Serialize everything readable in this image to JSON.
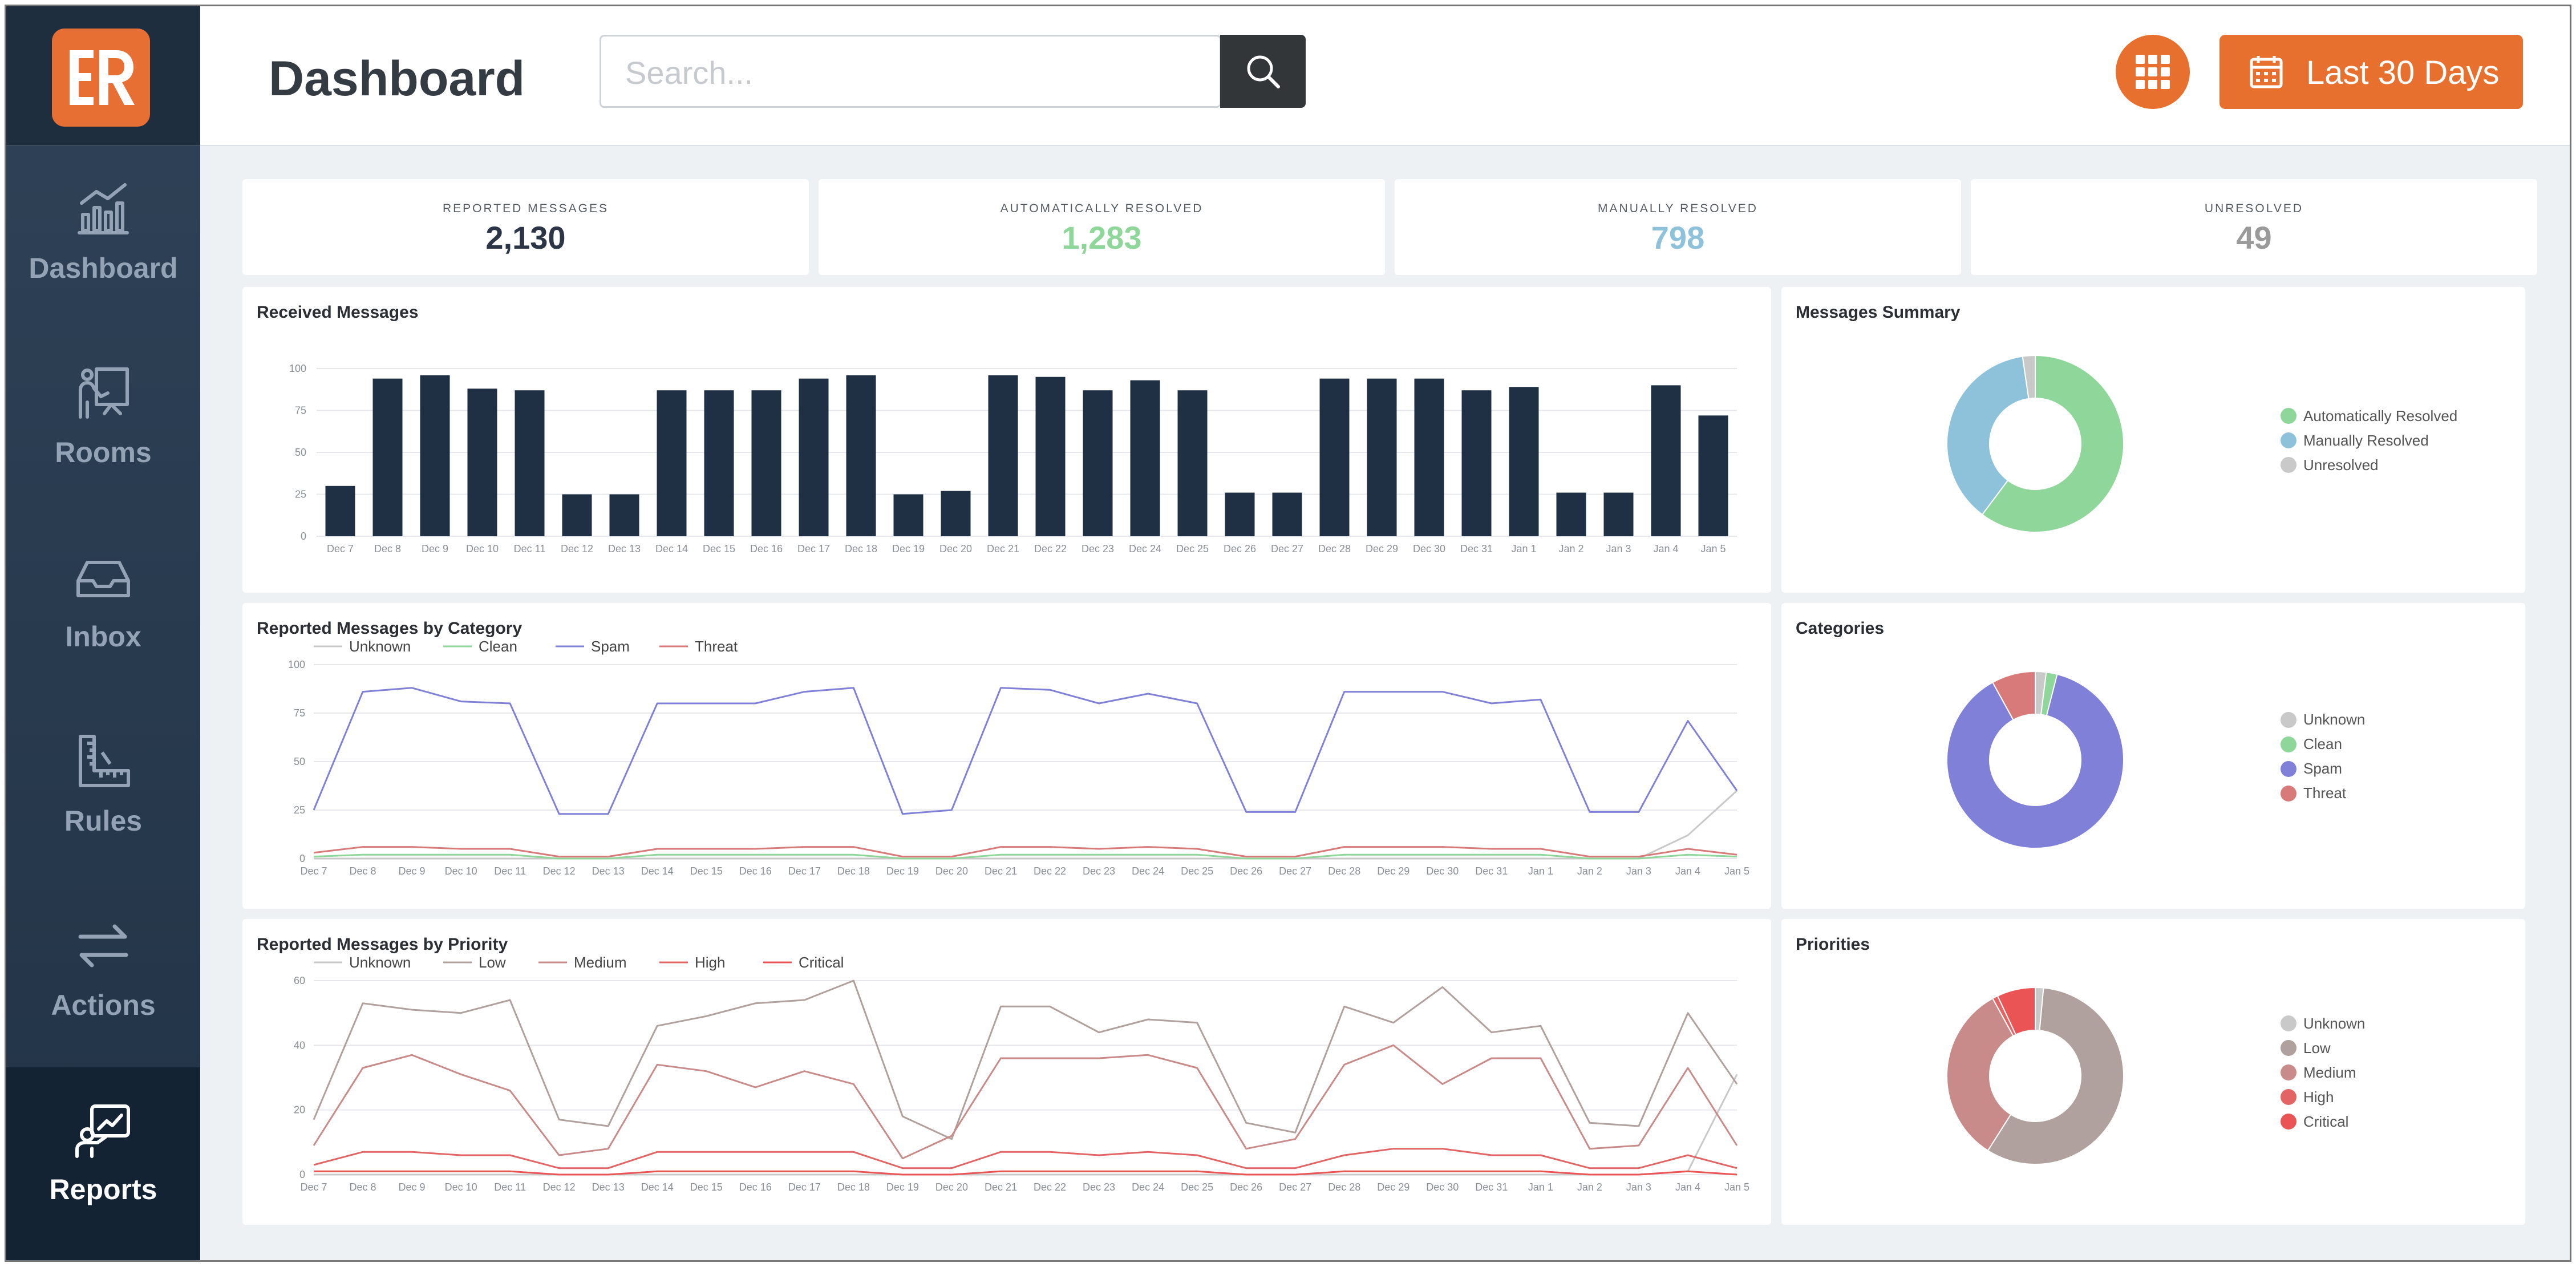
{
  "app": {
    "logo_text": "ER"
  },
  "nav": {
    "items": [
      {
        "label": "Dashboard",
        "icon": "chart-icon"
      },
      {
        "label": "Rooms",
        "icon": "rooms-icon"
      },
      {
        "label": "Inbox",
        "icon": "inbox-icon"
      },
      {
        "label": "Rules",
        "icon": "rules-icon"
      },
      {
        "label": "Actions",
        "icon": "swap-icon"
      },
      {
        "label": "Reports",
        "icon": "reports-icon",
        "active": true
      }
    ]
  },
  "header": {
    "title": "Dashboard",
    "search_placeholder": "Search...",
    "date_range_label": "Last 30 Days"
  },
  "colors": {
    "accent": "#e8702f",
    "navy": "#1f3045",
    "auto_resolved": "#8fd69a",
    "manual_resolved": "#8ec2db",
    "unresolved": "#c9c9c9",
    "unknown": "#c9c9c9",
    "clean": "#8fd69a",
    "spam": "#8080d8",
    "threat": "#d87a7a",
    "low": "#b0a19f",
    "medium": "#c98a8a",
    "high": "#e26464",
    "critical": "#ea5454"
  },
  "stats": [
    {
      "label": "REPORTED MESSAGES",
      "value": "2,130",
      "color": "#2b3545"
    },
    {
      "label": "AUTOMATICALLY RESOLVED",
      "value": "1,283",
      "color": "#8fd69a"
    },
    {
      "label": "MANUALLY RESOLVED",
      "value": "798",
      "color": "#8ec2db"
    },
    {
      "label": "UNRESOLVED",
      "value": "49",
      "color": "#9a9a9a"
    }
  ],
  "panels": {
    "received": "Received Messages",
    "summary": "Messages Summary",
    "by_category": "Reported Messages by Category",
    "categories": "Categories",
    "by_priority": "Reported Messages by Priority",
    "priorities": "Priorities"
  },
  "chart_data": [
    {
      "type": "bar",
      "title": "Received Messages",
      "categories": [
        "Dec 7",
        "Dec 8",
        "Dec 9",
        "Dec 10",
        "Dec 11",
        "Dec 12",
        "Dec 13",
        "Dec 14",
        "Dec 15",
        "Dec 16",
        "Dec 17",
        "Dec 18",
        "Dec 19",
        "Dec 20",
        "Dec 21",
        "Dec 22",
        "Dec 23",
        "Dec 24",
        "Dec 25",
        "Dec 26",
        "Dec 27",
        "Dec 28",
        "Dec 29",
        "Dec 30",
        "Dec 31",
        "Jan 1",
        "Jan 2",
        "Jan 3",
        "Jan 4",
        "Jan 5"
      ],
      "values": [
        30,
        94,
        96,
        88,
        87,
        25,
        25,
        87,
        87,
        87,
        94,
        96,
        25,
        27,
        96,
        95,
        87,
        93,
        87,
        26,
        26,
        94,
        94,
        94,
        87,
        89,
        26,
        26,
        90,
        72
      ],
      "ylim": [
        0,
        100
      ],
      "yticks": [
        0,
        25,
        50,
        75,
        100
      ]
    },
    {
      "type": "pie",
      "title": "Messages Summary",
      "labels": [
        "Automatically Resolved",
        "Manually Resolved",
        "Unresolved"
      ],
      "values": [
        1283,
        798,
        49
      ]
    },
    {
      "type": "line",
      "title": "Reported Messages by Category",
      "categories": [
        "Dec 7",
        "Dec 8",
        "Dec 9",
        "Dec 10",
        "Dec 11",
        "Dec 12",
        "Dec 13",
        "Dec 14",
        "Dec 15",
        "Dec 16",
        "Dec 17",
        "Dec 18",
        "Dec 19",
        "Dec 20",
        "Dec 21",
        "Dec 22",
        "Dec 23",
        "Dec 24",
        "Dec 25",
        "Dec 26",
        "Dec 27",
        "Dec 28",
        "Dec 29",
        "Dec 30",
        "Dec 31",
        "Jan 1",
        "Jan 2",
        "Jan 3",
        "Jan 4",
        "Jan 5"
      ],
      "series": [
        {
          "name": "Unknown",
          "values": [
            0,
            0,
            0,
            0,
            0,
            0,
            0,
            0,
            0,
            0,
            0,
            0,
            0,
            0,
            0,
            0,
            0,
            0,
            0,
            0,
            0,
            0,
            0,
            0,
            0,
            0,
            0,
            0,
            12,
            35
          ]
        },
        {
          "name": "Clean",
          "values": [
            1,
            2,
            2,
            2,
            2,
            0,
            0,
            2,
            2,
            2,
            2,
            2,
            0,
            0,
            2,
            2,
            2,
            2,
            2,
            0,
            0,
            2,
            2,
            2,
            2,
            2,
            0,
            0,
            2,
            1
          ]
        },
        {
          "name": "Spam",
          "values": [
            25,
            86,
            88,
            81,
            80,
            23,
            23,
            80,
            80,
            80,
            86,
            88,
            23,
            25,
            88,
            87,
            80,
            85,
            80,
            24,
            24,
            86,
            86,
            86,
            80,
            82,
            24,
            24,
            71,
            35
          ]
        },
        {
          "name": "Threat",
          "values": [
            3,
            6,
            6,
            5,
            5,
            1,
            1,
            5,
            5,
            5,
            6,
            6,
            1,
            1,
            6,
            6,
            5,
            6,
            5,
            1,
            1,
            6,
            6,
            6,
            5,
            5,
            1,
            1,
            5,
            2
          ]
        }
      ],
      "ylim": [
        0,
        100
      ],
      "yticks": [
        0,
        25,
        50,
        75,
        100
      ]
    },
    {
      "type": "pie",
      "title": "Categories",
      "labels": [
        "Unknown",
        "Clean",
        "Spam",
        "Threat"
      ],
      "values": [
        2,
        2,
        88,
        8
      ]
    },
    {
      "type": "line",
      "title": "Reported Messages by Priority",
      "categories": [
        "Dec 7",
        "Dec 8",
        "Dec 9",
        "Dec 10",
        "Dec 11",
        "Dec 12",
        "Dec 13",
        "Dec 14",
        "Dec 15",
        "Dec 16",
        "Dec 17",
        "Dec 18",
        "Dec 19",
        "Dec 20",
        "Dec 21",
        "Dec 22",
        "Dec 23",
        "Dec 24",
        "Dec 25",
        "Dec 26",
        "Dec 27",
        "Dec 28",
        "Dec 29",
        "Dec 30",
        "Dec 31",
        "Jan 1",
        "Jan 2",
        "Jan 3",
        "Jan 4",
        "Jan 5"
      ],
      "series": [
        {
          "name": "Unknown",
          "values": [
            0,
            0,
            0,
            0,
            0,
            0,
            0,
            0,
            0,
            0,
            0,
            0,
            0,
            0,
            0,
            0,
            0,
            0,
            0,
            0,
            0,
            0,
            0,
            0,
            0,
            0,
            0,
            0,
            1,
            31
          ]
        },
        {
          "name": "Low",
          "values": [
            17,
            53,
            51,
            50,
            54,
            17,
            15,
            46,
            49,
            53,
            54,
            60,
            18,
            11,
            52,
            52,
            44,
            48,
            47,
            16,
            13,
            52,
            47,
            58,
            44,
            46,
            16,
            15,
            50,
            28
          ]
        },
        {
          "name": "Medium",
          "values": [
            9,
            33,
            37,
            31,
            26,
            6,
            8,
            34,
            32,
            27,
            32,
            28,
            5,
            12,
            36,
            36,
            36,
            37,
            33,
            8,
            11,
            34,
            40,
            28,
            36,
            36,
            8,
            9,
            33,
            9
          ]
        },
        {
          "name": "High",
          "values": [
            3,
            7,
            7,
            6,
            6,
            2,
            2,
            7,
            7,
            7,
            7,
            7,
            2,
            2,
            7,
            7,
            6,
            7,
            6,
            2,
            2,
            6,
            8,
            8,
            6,
            6,
            2,
            2,
            6,
            2
          ]
        },
        {
          "name": "Critical",
          "values": [
            1,
            1,
            1,
            1,
            1,
            0,
            0,
            1,
            1,
            1,
            1,
            1,
            0,
            0,
            1,
            1,
            1,
            1,
            1,
            0,
            0,
            1,
            1,
            1,
            1,
            1,
            0,
            0,
            1,
            0
          ]
        }
      ],
      "ylim": [
        0,
        60
      ],
      "yticks": [
        0,
        20,
        40,
        60
      ]
    },
    {
      "type": "pie",
      "title": "Priorities",
      "labels": [
        "Unknown",
        "Low",
        "Medium",
        "High",
        "Critical"
      ],
      "values": [
        1.5,
        57.5,
        33,
        1,
        7
      ]
    }
  ]
}
